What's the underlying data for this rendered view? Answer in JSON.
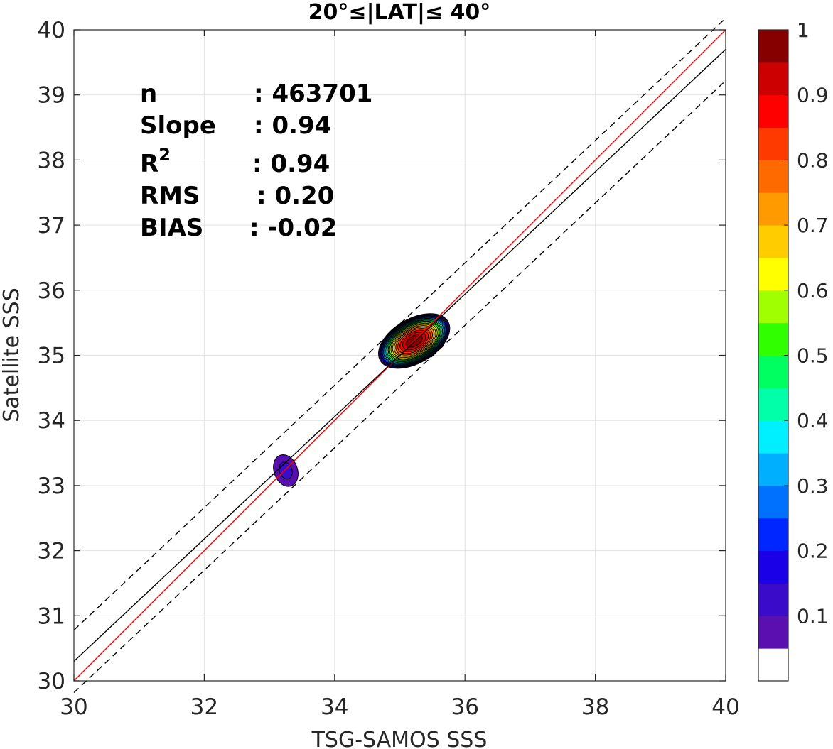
{
  "chart_data": {
    "type": "contour",
    "title": "20°≤|LAT|≤ 40°",
    "xlabel": "TSG-SAMOS SSS",
    "ylabel": "Satellite SSS",
    "xlim": [
      30,
      40
    ],
    "ylim": [
      30,
      40
    ],
    "xticks": [
      "30",
      "32",
      "34",
      "36",
      "38",
      "40"
    ],
    "yticks": [
      "30",
      "31",
      "32",
      "33",
      "34",
      "35",
      "36",
      "37",
      "38",
      "39",
      "40"
    ],
    "grid": true,
    "stats": [
      {
        "label": "n",
        "sep": ": ",
        "value": "463701"
      },
      {
        "label": "Slope",
        "sep": ": ",
        "value": "0.94"
      },
      {
        "label": "R",
        "sup": "2",
        "sep": ": ",
        "value": "0.94"
      },
      {
        "label": "RMS",
        "sep": ": ",
        "value": "0.20"
      },
      {
        "label": "BIAS",
        "sep": ": ",
        "value": "-0.02"
      }
    ],
    "lines": [
      {
        "name": "one-to-one",
        "color": "#ff0000",
        "style": "solid",
        "points": [
          [
            30,
            30
          ],
          [
            40,
            40
          ]
        ]
      },
      {
        "name": "regression",
        "color": "#000000",
        "style": "solid",
        "points": [
          [
            30,
            30.3
          ],
          [
            40,
            39.7
          ]
        ]
      },
      {
        "name": "upper-bound",
        "color": "#000000",
        "style": "dashed",
        "points": [
          [
            30,
            30.78
          ],
          [
            40,
            40.18
          ]
        ]
      },
      {
        "name": "lower-bound",
        "color": "#000000",
        "style": "dashed",
        "points": [
          [
            30,
            29.82
          ],
          [
            40,
            39.22
          ]
        ]
      }
    ],
    "density_peaks": [
      {
        "cx": 35.22,
        "cy": 35.22,
        "rx": 0.6,
        "ry": 0.34,
        "rotate_deg": -30,
        "peak": 1.0
      },
      {
        "cx": 33.25,
        "cy": 33.23,
        "rx": 0.18,
        "ry": 0.25,
        "rotate_deg": -20,
        "peak": 0.12
      }
    ],
    "colorbar": {
      "ticks": [
        "0.1",
        "0.2",
        "0.3",
        "0.4",
        "0.5",
        "0.6",
        "0.7",
        "0.8",
        "0.9",
        "1"
      ],
      "tick_values": [
        0.1,
        0.2,
        0.3,
        0.4,
        0.5,
        0.6,
        0.7,
        0.8,
        0.9,
        1.0
      ],
      "range": [
        0,
        1
      ],
      "levels": [
        {
          "from": 0.0,
          "to": 0.05,
          "color": "#ffffff"
        },
        {
          "from": 0.05,
          "to": 0.1,
          "color": "#5a0fb0"
        },
        {
          "from": 0.1,
          "to": 0.15,
          "color": "#3a0bc8"
        },
        {
          "from": 0.15,
          "to": 0.2,
          "color": "#1a00e6"
        },
        {
          "from": 0.2,
          "to": 0.25,
          "color": "#0026ff"
        },
        {
          "from": 0.25,
          "to": 0.3,
          "color": "#0070ff"
        },
        {
          "from": 0.3,
          "to": 0.35,
          "color": "#00b0ff"
        },
        {
          "from": 0.35,
          "to": 0.4,
          "color": "#00f0ff"
        },
        {
          "from": 0.4,
          "to": 0.45,
          "color": "#00ffa8"
        },
        {
          "from": 0.45,
          "to": 0.5,
          "color": "#00ff60"
        },
        {
          "from": 0.5,
          "to": 0.55,
          "color": "#30ff00"
        },
        {
          "from": 0.55,
          "to": 0.6,
          "color": "#a0ff00"
        },
        {
          "from": 0.6,
          "to": 0.65,
          "color": "#ffff00"
        },
        {
          "from": 0.65,
          "to": 0.7,
          "color": "#ffcc00"
        },
        {
          "from": 0.7,
          "to": 0.75,
          "color": "#ff9a00"
        },
        {
          "from": 0.75,
          "to": 0.8,
          "color": "#ff6a00"
        },
        {
          "from": 0.8,
          "to": 0.85,
          "color": "#ff3a00"
        },
        {
          "from": 0.85,
          "to": 0.9,
          "color": "#ff0000"
        },
        {
          "from": 0.9,
          "to": 0.95,
          "color": "#cc0000"
        },
        {
          "from": 0.95,
          "to": 1.0,
          "color": "#870000"
        }
      ]
    }
  }
}
